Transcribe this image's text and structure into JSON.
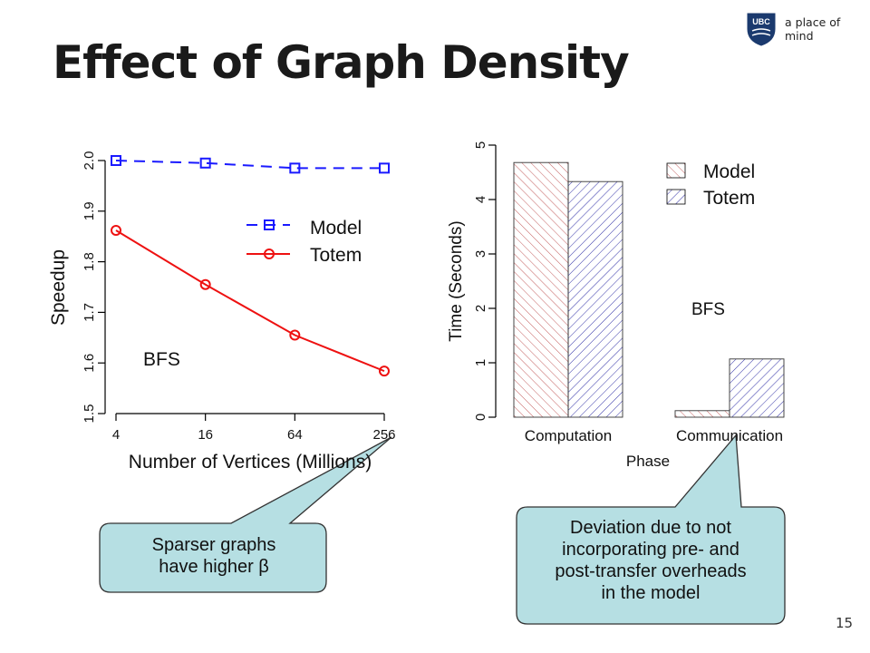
{
  "slide": {
    "title": "Effect of Graph Density",
    "tagline": "a place of mind",
    "logo_text": "UBC",
    "page_number": "15"
  },
  "callouts": [
    {
      "line1": "Sparser graphs",
      "line2": "have higher β"
    },
    {
      "line1": "Deviation due to not",
      "line2": "incorporating pre- and",
      "line3": "post-transfer overheads",
      "line4": "in the model"
    }
  ],
  "colors": {
    "model": "#1a1aff",
    "totem": "#ee1111",
    "callout_fill": "#b6dfe3",
    "model_hatch": "#c46060",
    "totem_hatch": "#3434a8"
  },
  "chart_data": [
    {
      "type": "line",
      "xlabel": "Number of Vertices (Millions)",
      "ylabel": "Speedup",
      "annotation": "BFS",
      "x_ticks": [
        "4",
        "16",
        "64",
        "256"
      ],
      "y_ticks": [
        "1.5",
        "1.6",
        "1.7",
        "1.8",
        "1.9",
        "2.0"
      ],
      "ylim": [
        1.5,
        2.0
      ],
      "x_scale": "log",
      "legend_placement": "right",
      "series": [
        {
          "name": "Model",
          "style": "dashed",
          "marker": "square",
          "color": "#1a1aff",
          "x": [
            4,
            16,
            64,
            256
          ],
          "values": [
            2.0,
            1.995,
            1.985,
            1.985
          ]
        },
        {
          "name": "Totem",
          "style": "solid",
          "marker": "circle",
          "color": "#ee1111",
          "x": [
            4,
            16,
            64,
            256
          ],
          "values": [
            1.862,
            1.755,
            1.655,
            1.584
          ]
        }
      ]
    },
    {
      "type": "bar",
      "xlabel": "Phase",
      "ylabel": "Time (Seconds)",
      "annotation": "BFS",
      "categories": [
        "Computation",
        "Communication"
      ],
      "y_ticks": [
        "0",
        "1",
        "2",
        "3",
        "4",
        "5"
      ],
      "ylim": [
        0,
        5
      ],
      "legend_placement": "top-right",
      "series": [
        {
          "name": "Model",
          "hatch": "diagonal-up",
          "color": "#c46060",
          "values": [
            4.68,
            0.12
          ]
        },
        {
          "name": "Totem",
          "hatch": "diagonal-down",
          "color": "#3434a8",
          "values": [
            4.33,
            1.07
          ]
        }
      ]
    }
  ]
}
